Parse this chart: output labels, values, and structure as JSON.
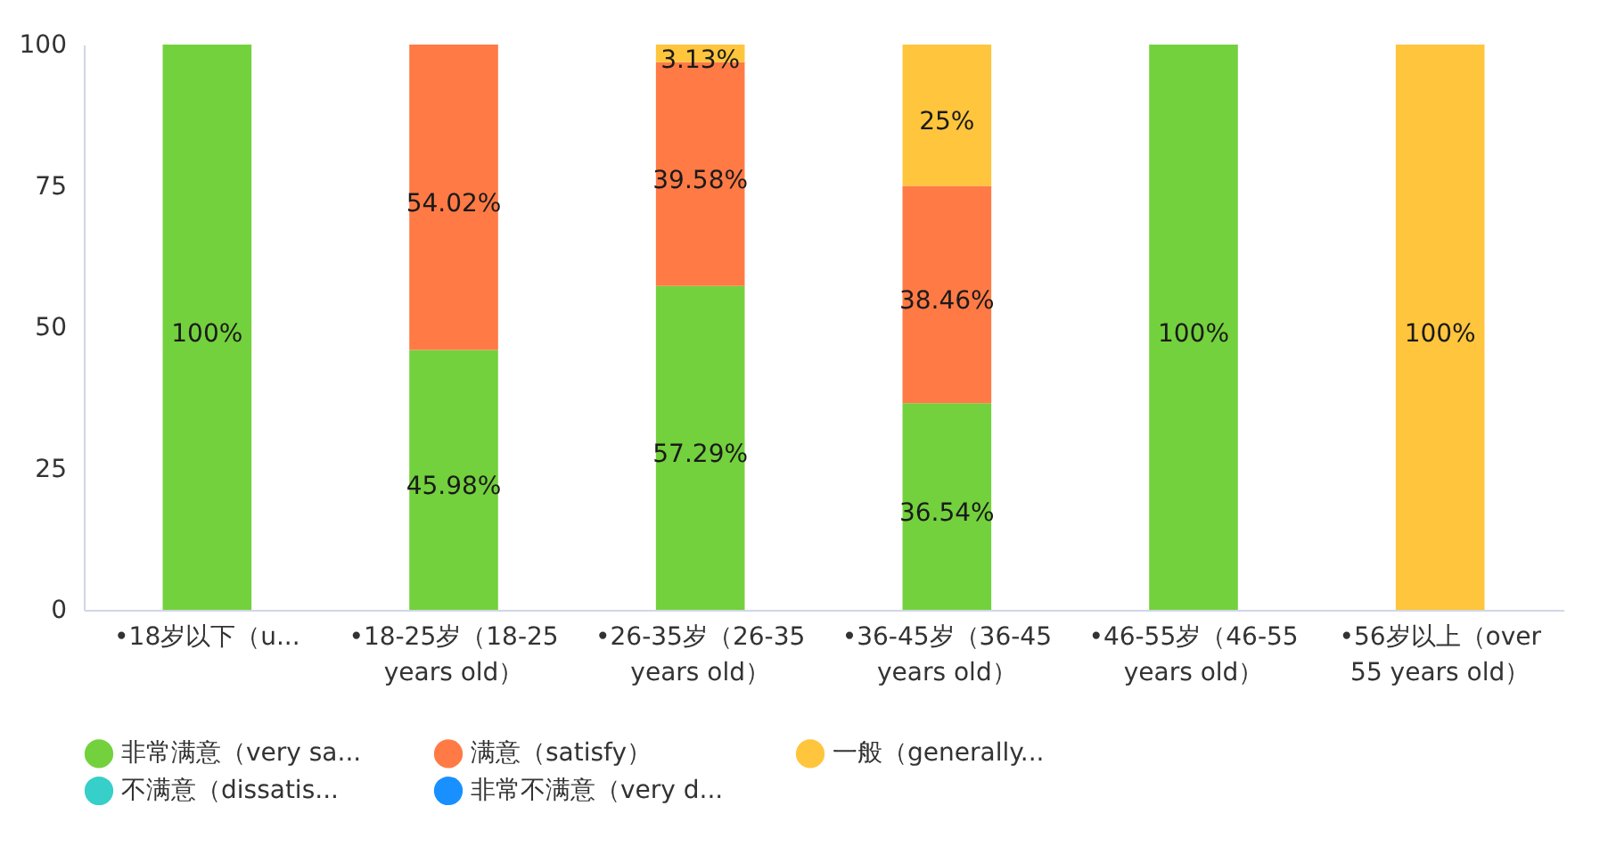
{
  "chart_data": {
    "type": "bar",
    "stacked": true,
    "categories": [
      "•18岁以下（u...",
      "•18-25岁（18-25 years old）",
      "•26-35岁（26-35 years old）",
      "•36-45岁（36-45 years old）",
      "•46-55岁（46-55 years old）",
      "•56岁以上（over 55 years old）"
    ],
    "series": [
      {
        "name": "非常满意（very sa...",
        "color": "#73d13d",
        "values": [
          100,
          45.98,
          57.29,
          36.54,
          100,
          null
        ],
        "value_labels": [
          "100%",
          "45.98%",
          "57.29%",
          "36.54%",
          "100%",
          null
        ]
      },
      {
        "name": "满意（satisfy）",
        "color": "#ff7a45",
        "values": [
          null,
          54.02,
          39.58,
          38.46,
          null,
          null
        ],
        "value_labels": [
          null,
          "54.02%",
          "39.58%",
          "38.46%",
          null,
          null
        ]
      },
      {
        "name": "一般（generally...",
        "color": "#ffc53d",
        "values": [
          null,
          null,
          3.13,
          25,
          null,
          100
        ],
        "value_labels": [
          null,
          null,
          "3.13%",
          "25%",
          null,
          "100%"
        ]
      },
      {
        "name": "不满意（dissatis...",
        "color": "#36cfc9",
        "values": [
          null,
          null,
          null,
          null,
          null,
          null
        ]
      },
      {
        "name": "非常不满意（very d...",
        "color": "#1890ff",
        "values": [
          null,
          null,
          null,
          null,
          null,
          null
        ]
      }
    ],
    "ylim": [
      0,
      100
    ],
    "yticks": [
      0,
      25,
      50,
      75,
      100
    ],
    "grid": false,
    "legend": "bottom"
  }
}
